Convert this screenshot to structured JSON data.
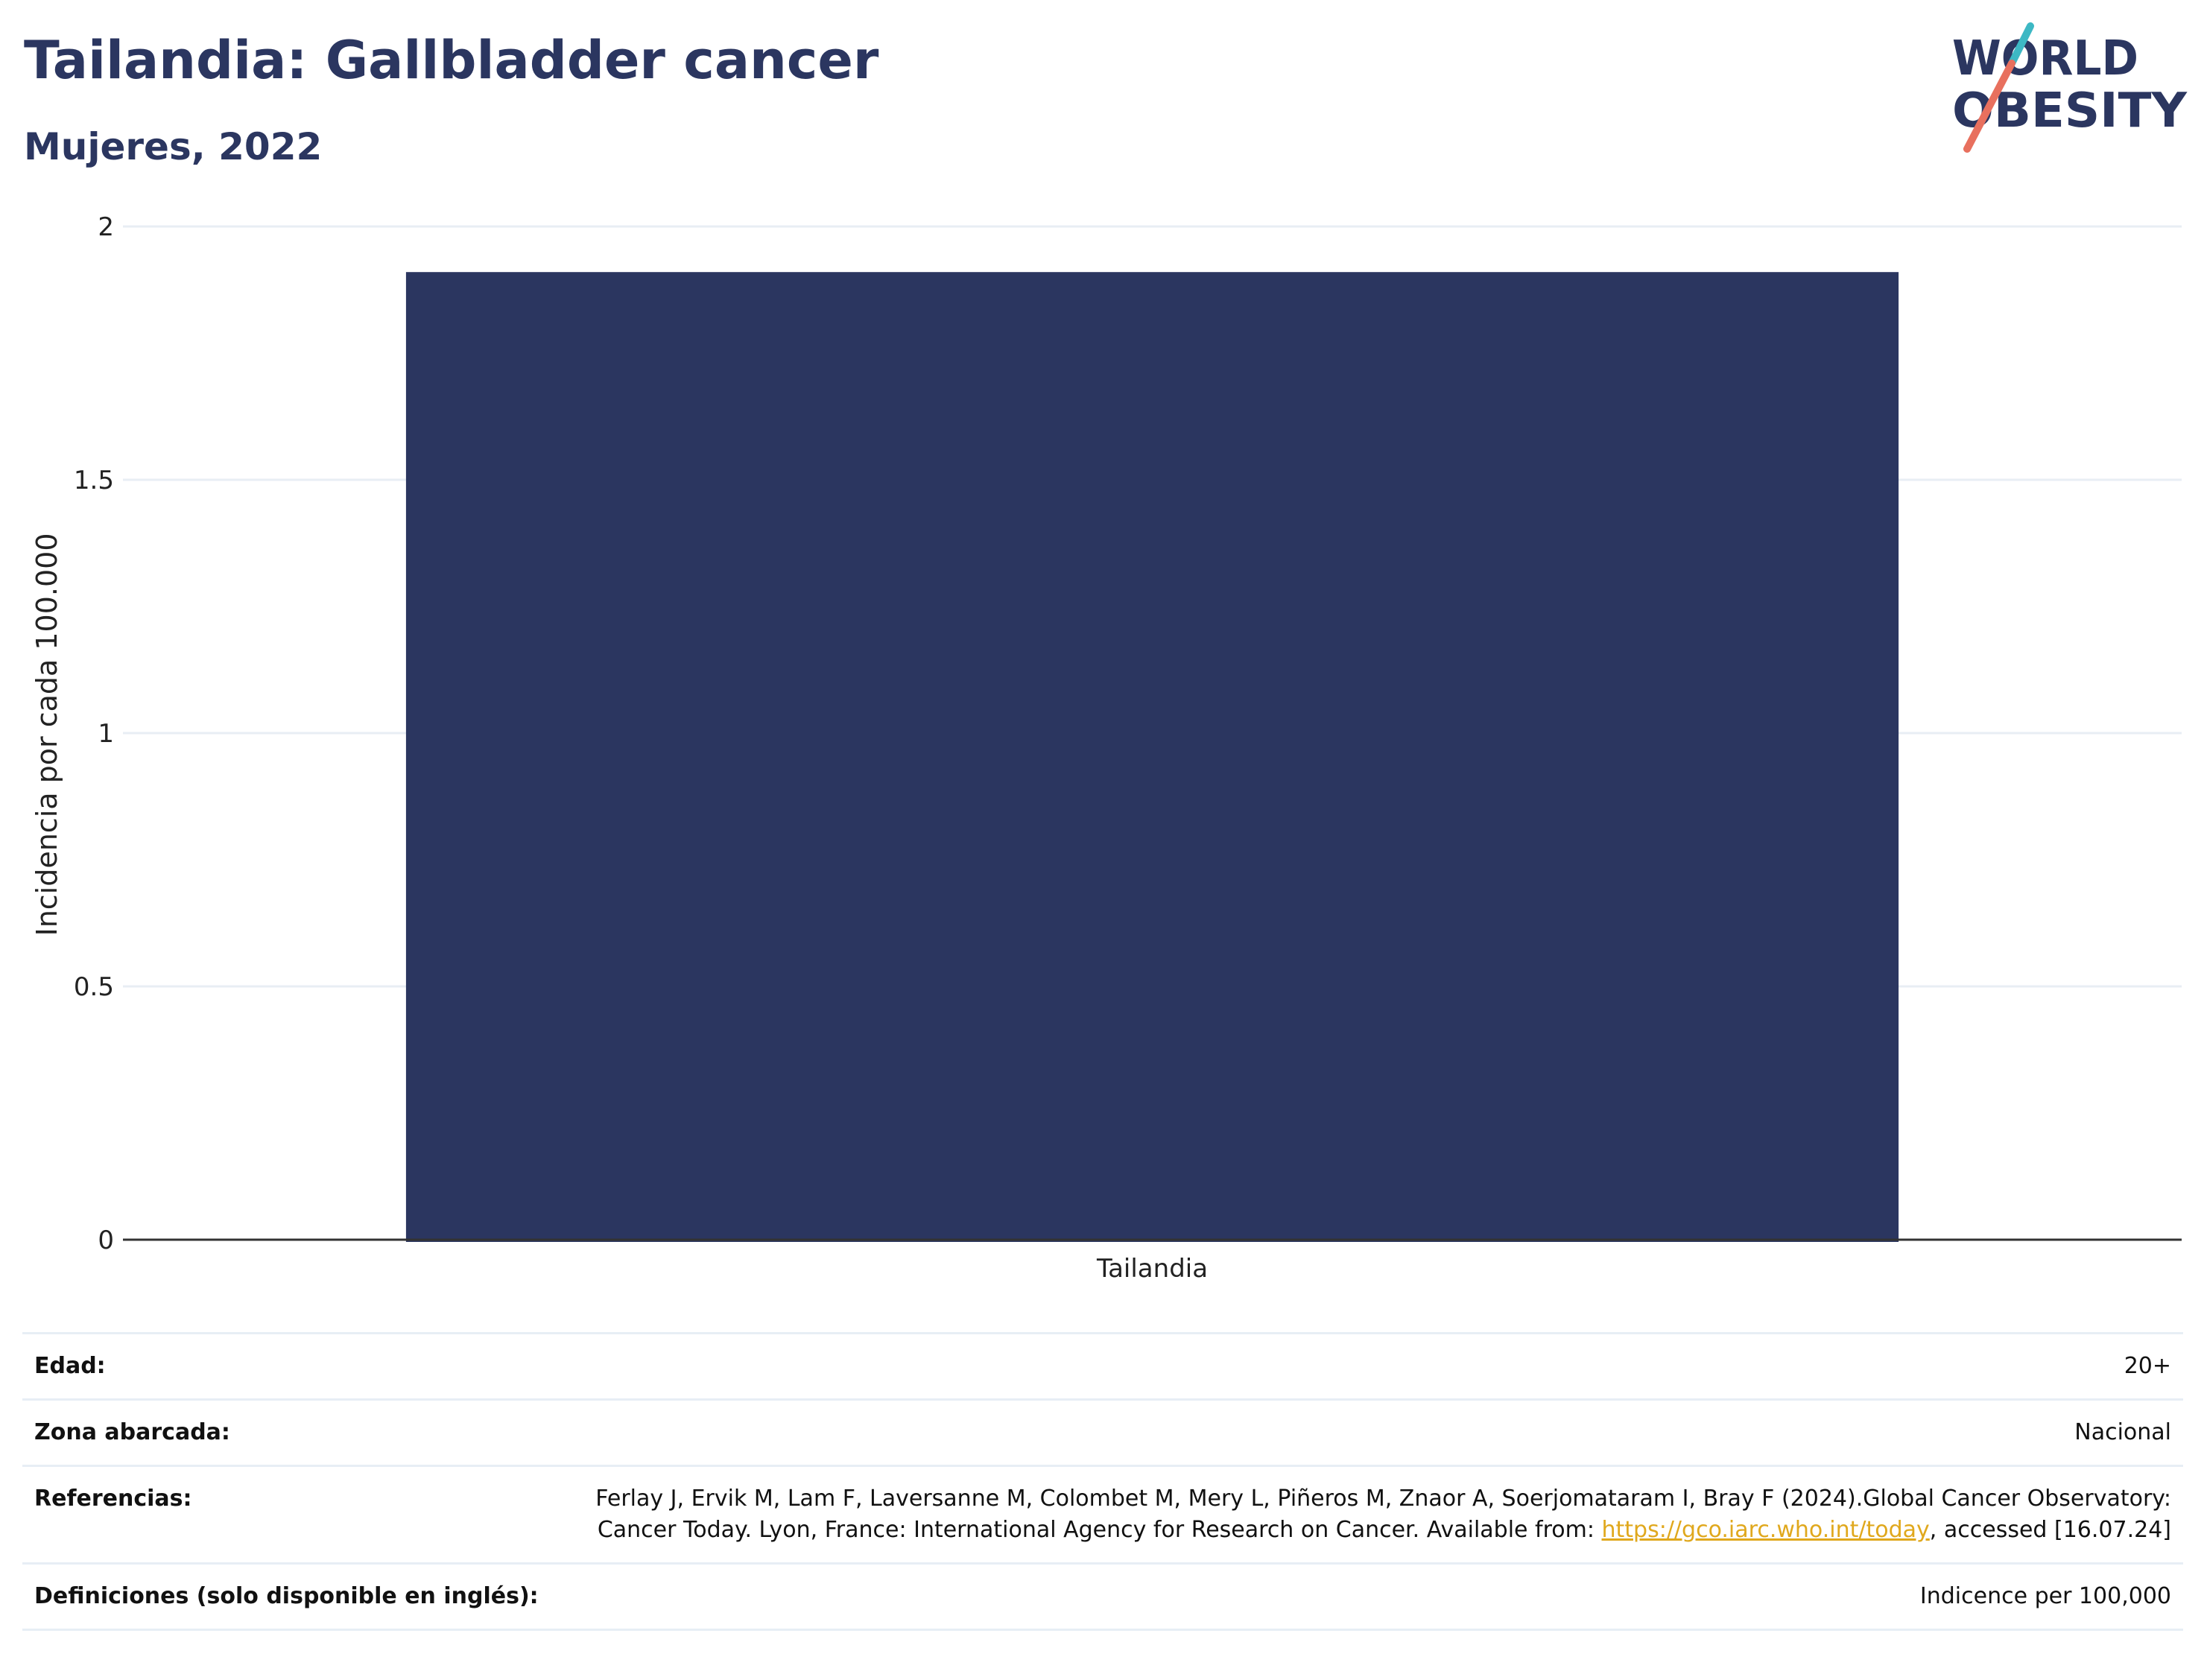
{
  "header": {
    "title": "Tailandia: Gallbladder cancer",
    "subtitle": "Mujeres, 2022"
  },
  "logo": {
    "line1": "WORLD",
    "line2": "OBESITY",
    "colors": {
      "text": "#2b3660",
      "slash_top": "#3db8c4",
      "slash_bottom": "#e8705e"
    }
  },
  "chart_data": {
    "type": "bar",
    "categories": [
      "Tailandia"
    ],
    "values": [
      1.91
    ],
    "title": "",
    "xlabel": "",
    "ylabel": "Incidencia por cada 100.000",
    "ylim": [
      0,
      2
    ],
    "yticks": [
      "0",
      "0.5",
      "1",
      "1.5",
      "2"
    ],
    "grid": true,
    "legend": "none",
    "colors": {
      "bar": "#2b3660",
      "grid": "#e8eef4",
      "axis": "#333333"
    }
  },
  "info": {
    "rows": [
      {
        "key": "Edad:",
        "value": "20+"
      },
      {
        "key": "Zona abarcada:",
        "value": "Nacional"
      },
      {
        "key": "Referencias:",
        "value_before": "Ferlay J, Ervik M, Lam F, Laversanne M, Colombet M, Mery L, Piñeros M, Znaor A, Soerjomataram I, Bray F (2024).Global Cancer Observatory: Cancer Today. Lyon, France: International Agency for Research on Cancer. Available from: ",
        "link": "https://gco.iarc.who.int/today",
        "value_after": ", accessed [16.07.24]"
      },
      {
        "key": "Definiciones (solo disponible en inglés):",
        "value": "Indicence per 100,000"
      }
    ]
  }
}
